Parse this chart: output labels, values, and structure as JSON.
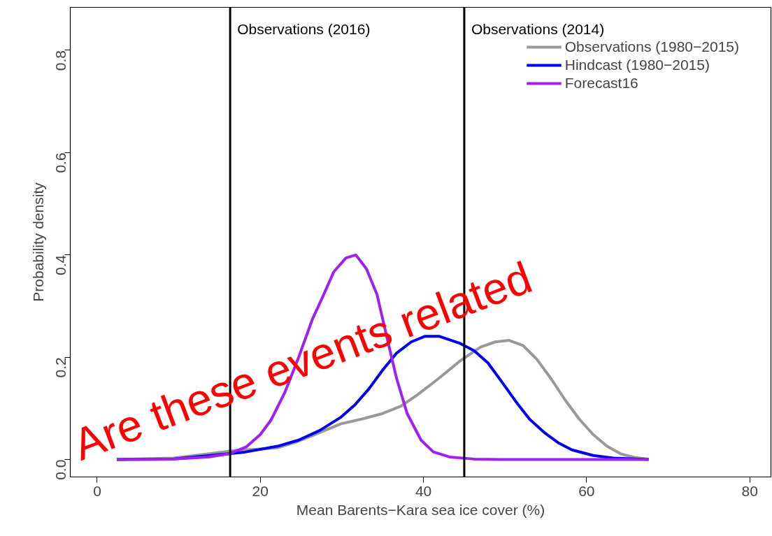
{
  "chart_data": {
    "type": "line",
    "xlabel": "Mean Barents−Kara sea ice cover (%)",
    "ylabel": "Probability density",
    "xlim": [
      -3.3,
      82.6
    ],
    "ylim": [
      -0.034,
      0.884
    ],
    "xticks": [
      0,
      20,
      40,
      60,
      80
    ],
    "yticks": [
      {
        "value": 0,
        "label": "0.0"
      },
      {
        "value": 0.2,
        "label": "0.2"
      },
      {
        "value": 0.4,
        "label": "0.4"
      },
      {
        "value": 0.6,
        "label": "0.6"
      },
      {
        "value": 0.8,
        "label": "0.8"
      }
    ],
    "grid": false,
    "legend": "top right",
    "marker": "none",
    "line_style": "solid",
    "series": [
      {
        "name": "Observations (1980−2015)",
        "color": "#999999",
        "x": [
          2.4,
          9.3,
          13.6,
          17.0,
          20.4,
          22.1,
          24.7,
          27.3,
          29.9,
          32.4,
          35.0,
          37.2,
          39.3,
          41.9,
          44.5,
          47.0,
          48.8,
          50.5,
          52.2,
          53.9,
          55.6,
          57.3,
          59.1,
          60.8,
          62.5,
          64.2,
          65.9,
          67.6
        ],
        "values": [
          0.0,
          0.003,
          0.011,
          0.018,
          0.021,
          0.023,
          0.036,
          0.053,
          0.07,
          0.079,
          0.09,
          0.104,
          0.127,
          0.159,
          0.193,
          0.22,
          0.23,
          0.233,
          0.223,
          0.196,
          0.159,
          0.118,
          0.079,
          0.049,
          0.026,
          0.011,
          0.004,
          0.001
        ]
      },
      {
        "name": "Hindcast (1980−2015)",
        "color": "#0000ee",
        "x": [
          2.4,
          9.3,
          17.9,
          22.1,
          24.7,
          27.3,
          29.9,
          31.6,
          33.3,
          35.0,
          36.7,
          38.5,
          40.2,
          41.9,
          44.5,
          46.2,
          47.9,
          49.6,
          51.3,
          53.0,
          54.8,
          56.5,
          58.2,
          60.8,
          63.3,
          67.6
        ],
        "values": [
          0.0,
          0.001,
          0.014,
          0.026,
          0.038,
          0.057,
          0.083,
          0.107,
          0.138,
          0.175,
          0.208,
          0.23,
          0.241,
          0.241,
          0.227,
          0.213,
          0.189,
          0.152,
          0.114,
          0.079,
          0.053,
          0.033,
          0.019,
          0.008,
          0.003,
          0.0
        ]
      },
      {
        "name": "Forecast16",
        "color": "#a020f0",
        "x": [
          2.4,
          9.3,
          13.6,
          16.1,
          18.3,
          20.0,
          21.3,
          23.0,
          24.7,
          26.4,
          27.7,
          29.0,
          30.5,
          31.7,
          33.0,
          34.3,
          35.5,
          36.7,
          38.0,
          39.7,
          41.2,
          43.2,
          46.2,
          49.6,
          67.6
        ],
        "values": [
          0.0,
          0.001,
          0.005,
          0.011,
          0.025,
          0.049,
          0.077,
          0.131,
          0.2,
          0.275,
          0.32,
          0.367,
          0.394,
          0.4,
          0.373,
          0.323,
          0.24,
          0.159,
          0.09,
          0.038,
          0.015,
          0.005,
          0.001,
          0.0,
          0.0
        ]
      }
    ],
    "ref_lines": [
      {
        "axis": "x",
        "value": 16.3,
        "label": "Observations (2016)",
        "color": "#000000"
      },
      {
        "axis": "x",
        "value": 45.0,
        "label": "Observations (2014)",
        "color": "#000000"
      }
    ],
    "annotations": [
      "Are these events related"
    ]
  }
}
